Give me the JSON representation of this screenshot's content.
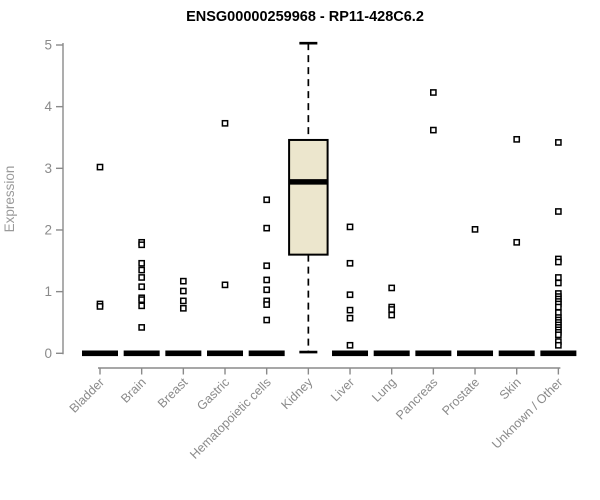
{
  "style": {
    "background": "#ffffff",
    "title_color": "#000000",
    "axis_color": "#8a8a8a",
    "tick_label_color": "#8a8a8a",
    "axis_label_color": "#9a9a9a",
    "point_stroke": "#000000",
    "point_fill": "#ffffff",
    "zero_bar_color": "#000000",
    "box_fill": "#ece6cd",
    "box_border": "#000000",
    "median_color": "#000000"
  },
  "chart_data": {
    "type": "boxplot",
    "title": "ENSG00000259968 - RP11-428C6.2",
    "xlabel": "",
    "ylabel": "Expression",
    "ylim": [
      0,
      5
    ],
    "yticks": [
      0,
      1,
      2,
      3,
      4,
      5
    ],
    "grid": false,
    "legend": "none",
    "categories": [
      "Bladder",
      "Brain",
      "Breast",
      "Gastric",
      "Hematopoietic cells",
      "Kidney",
      "Liver",
      "Lung",
      "Pancreas",
      "Prostate",
      "Skin",
      "Unknown / Other"
    ],
    "groups": [
      {
        "name": "Bladder",
        "zero_bar": true,
        "points": [
          3.02,
          0.8,
          0.76
        ]
      },
      {
        "name": "Brain",
        "zero_bar": true,
        "points": [
          1.8,
          1.76,
          1.46,
          1.35,
          1.23,
          1.08,
          0.9,
          0.87,
          0.77,
          0.42
        ]
      },
      {
        "name": "Breast",
        "zero_bar": true,
        "points": [
          1.17,
          1.01,
          0.85,
          0.73
        ]
      },
      {
        "name": "Gastric",
        "zero_bar": true,
        "points": [
          3.73,
          1.11
        ]
      },
      {
        "name": "Hematopoietic cells",
        "zero_bar": true,
        "points": [
          2.49,
          2.03,
          1.42,
          1.19,
          1.03,
          0.85,
          0.79,
          0.54
        ]
      },
      {
        "name": "Kidney",
        "zero_bar": false,
        "points": [],
        "box": {
          "lower_whisker": 0.02,
          "q1": 1.6,
          "median": 2.78,
          "q3": 3.46,
          "upper_whisker": 5.03
        }
      },
      {
        "name": "Liver",
        "zero_bar": true,
        "points": [
          2.05,
          1.46,
          0.95,
          0.7,
          0.57,
          0.13
        ]
      },
      {
        "name": "Lung",
        "zero_bar": true,
        "points": [
          1.06,
          0.75,
          0.71,
          0.62
        ]
      },
      {
        "name": "Pancreas",
        "zero_bar": true,
        "points": [
          4.23,
          3.62
        ]
      },
      {
        "name": "Prostate",
        "zero_bar": true,
        "points": [
          2.01
        ]
      },
      {
        "name": "Skin",
        "zero_bar": true,
        "points": [
          3.47,
          1.8
        ]
      },
      {
        "name": "Unknown / Other",
        "zero_bar": true,
        "points": [
          3.42,
          2.3,
          1.53,
          1.48,
          1.23,
          1.14,
          0.97,
          0.92,
          0.88,
          0.84,
          0.8,
          0.75,
          0.66,
          0.58,
          0.54,
          0.5,
          0.46,
          0.42,
          0.38,
          0.34,
          0.3,
          0.19,
          0.13
        ]
      }
    ]
  }
}
